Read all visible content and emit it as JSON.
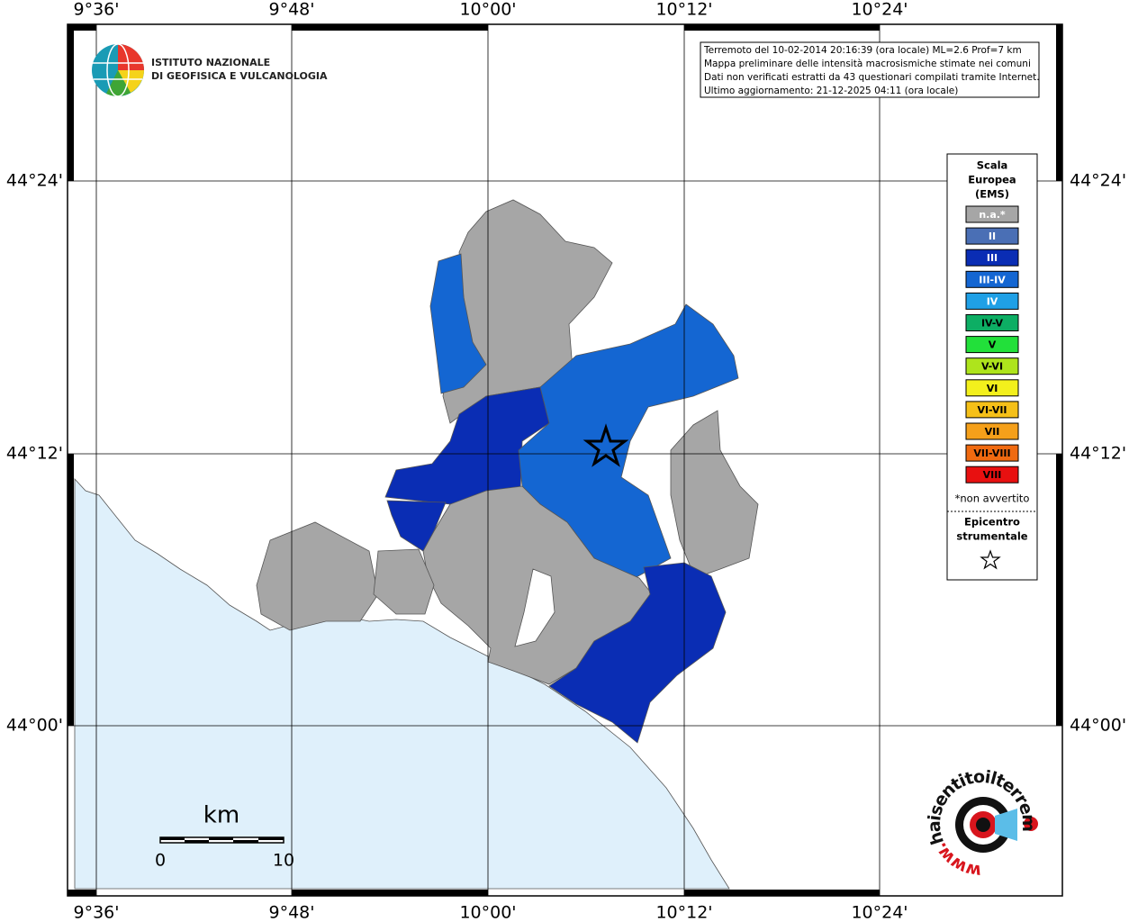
{
  "map": {
    "lon_labels": [
      "9°36'",
      "9°48'",
      "10°00'",
      "10°12'",
      "10°24'"
    ],
    "lat_labels": [
      "44°24'",
      "44°12'",
      "44°00'"
    ],
    "logo": {
      "line1": "ISTITUTO NAZIONALE",
      "line2": "DI GEOFISICA E VULCANOLOGIA"
    },
    "info": [
      "Terremoto del 10-02-2014 20:16:39 (ora locale) ML=2.6 Prof=7 km",
      "Mappa preliminare delle intensità macrosismiche stimate nei comuni",
      "Dati non verificati estratti da 43 questionari compilati tramite Internet.",
      "Ultimo aggiornamento: 21-12-2025 04:11 (ora locale)"
    ],
    "legend": {
      "title": [
        "Scala",
        "Europea",
        "(EMS)"
      ],
      "items": [
        {
          "label": "n.a.*",
          "color": "#a6a6a6"
        },
        {
          "label": "II",
          "color": "#4a6fb5"
        },
        {
          "label": "III",
          "color": "#0a2db4"
        },
        {
          "label": "III-IV",
          "color": "#1466d2"
        },
        {
          "label": "IV",
          "color": "#1fa0e6"
        },
        {
          "label": "IV-V",
          "color": "#0dae64"
        },
        {
          "label": "V",
          "color": "#22e03a"
        },
        {
          "label": "V-VI",
          "color": "#aee41c"
        },
        {
          "label": "VI",
          "color": "#f3f01c"
        },
        {
          "label": "VI-VII",
          "color": "#f5c018"
        },
        {
          "label": "VII",
          "color": "#f5a01a"
        },
        {
          "label": "VII-VIII",
          "color": "#f06a10"
        },
        {
          "label": "VIII",
          "color": "#e81010"
        }
      ],
      "note": "*non avvertito",
      "epicenter": [
        "Epicentro",
        "strumentale"
      ]
    },
    "scale": {
      "unit": "km",
      "labels": [
        "0",
        "10"
      ]
    },
    "site_logo": {
      "prefix": "www.",
      "text": "haisentitoilterremoto.it"
    }
  }
}
